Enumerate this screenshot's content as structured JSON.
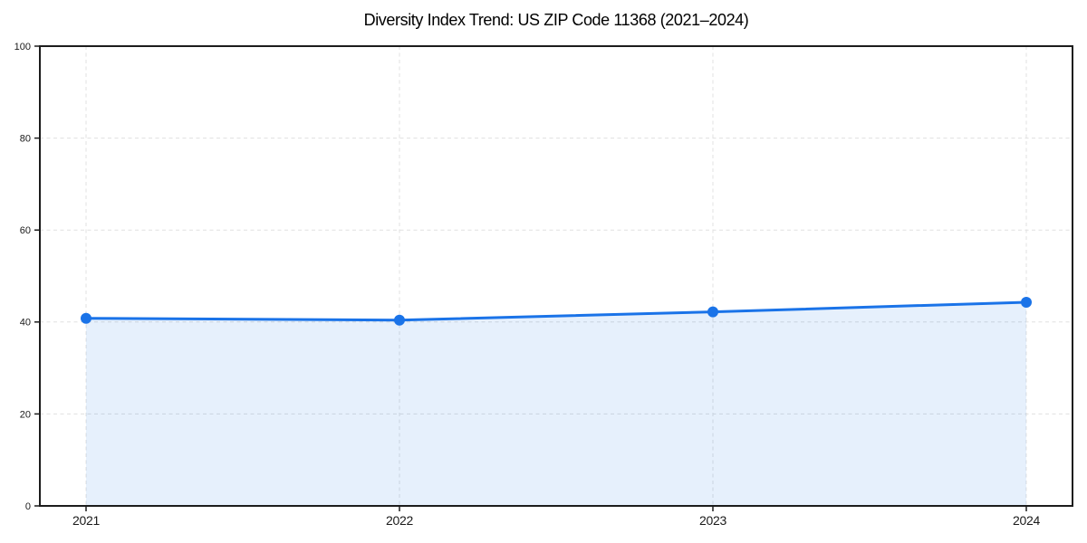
{
  "chart_data": {
    "type": "line",
    "title": "Diversity Index Trend: US ZIP Code 11368 (2021–2024)",
    "categories": [
      "2021",
      "2022",
      "2023",
      "2024"
    ],
    "series": [
      {
        "name": "Diversity Index",
        "values": [
          40.8,
          40.4,
          42.2,
          44.3
        ]
      }
    ],
    "xlabel": "",
    "ylabel": "",
    "ylim": [
      0,
      100
    ],
    "yticks": [
      0,
      20,
      40,
      60,
      80,
      100
    ],
    "grid": true,
    "grid_line_style": "dashed",
    "legend": "none",
    "area_fill": true,
    "marker": "circle",
    "colors": {
      "line": "#1a73e8",
      "marker": "#1a73e8",
      "area_fill": "rgba(26,115,232,0.11)",
      "grid": "#e0e0e0",
      "spine": "#1c1c1c",
      "tick_text": "#1a1a1a",
      "background": "#ffffff"
    }
  }
}
